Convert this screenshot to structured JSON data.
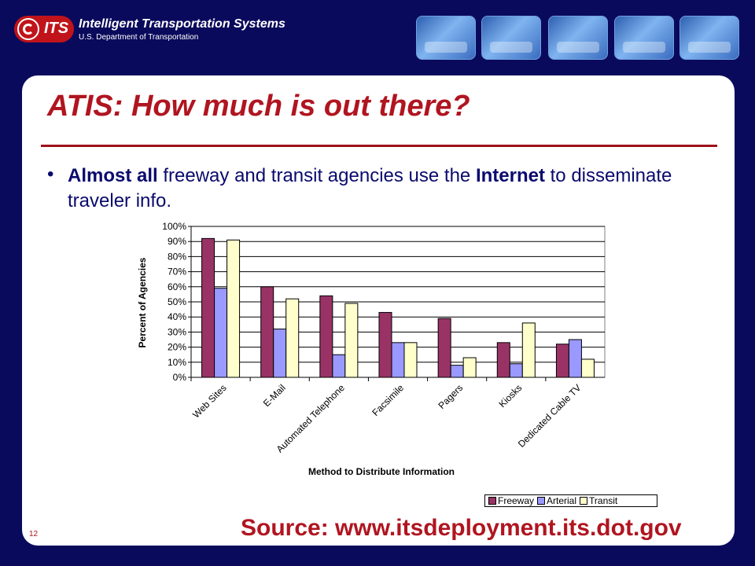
{
  "header": {
    "logo_text": "ITS",
    "title": "Intelligent Transportation Systems",
    "subtitle": "U.S. Department of Transportation"
  },
  "slide": {
    "title": "ATIS: How much is out there?",
    "bullet_parts": [
      "Almost all",
      " freeway and transit agencies use the ",
      "Internet",
      " to disseminate traveler info."
    ],
    "source": "Source: www.itsdeployment.its.dot.gov",
    "page_number": "12"
  },
  "colors": {
    "freeway": "#993366",
    "arterial": "#9999ff",
    "transit": "#ffffcc",
    "accent": "#b01520"
  },
  "chart_data": {
    "type": "bar",
    "categories": [
      "Web Sites",
      "E-Mail",
      "Automated Telephone",
      "Facsimile",
      "Pagers",
      "Kiosks",
      "Dedicated Cable TV"
    ],
    "series": [
      {
        "name": "Freeway",
        "values": [
          92,
          60,
          54,
          43,
          39,
          23,
          22
        ]
      },
      {
        "name": "Arterial",
        "values": [
          59,
          32,
          15,
          23,
          8,
          9,
          25
        ]
      },
      {
        "name": "Transit",
        "values": [
          91,
          52,
          49,
          23,
          13,
          36,
          12
        ]
      }
    ],
    "yticks": [
      "0%",
      "10%",
      "20%",
      "30%",
      "40%",
      "50%",
      "60%",
      "70%",
      "80%",
      "90%",
      "100%"
    ],
    "ylim": [
      0,
      100
    ],
    "xlabel": "Method to Distribute Information",
    "ylabel": "Percent of  Agencies",
    "legend": "bottom-right",
    "grid": true
  }
}
